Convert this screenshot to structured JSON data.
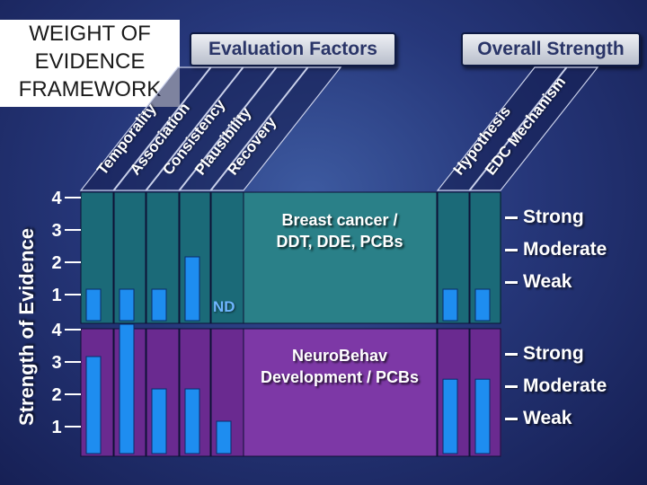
{
  "title_lines": [
    "WEIGHT OF",
    "EVIDENCE",
    "FRAMEWORK"
  ],
  "headers": {
    "evaluation": "Evaluation Factors",
    "overall": "Overall Strength"
  },
  "chart_data": {
    "type": "bar",
    "ylabel": "Strength of Evidence",
    "ylim": [
      0,
      4
    ],
    "yticks": [
      "1",
      "2",
      "3",
      "4"
    ],
    "categories": [
      "Temporality",
      "Association",
      "Consistency",
      "Plausibility",
      "Recovery",
      "Hypothesis",
      "EDC Mechanism"
    ],
    "category_groups": {
      "Evaluation Factors": [
        0,
        1,
        2,
        3,
        4
      ],
      "Overall Strength": [
        5,
        6
      ]
    },
    "strength_labels": [
      "Strong",
      "Moderate",
      "Weak"
    ],
    "colors": {
      "bar": "#1e8df0",
      "teal_panel": "#1b6a78",
      "purple_panel": "#6a2a90"
    },
    "panels": [
      {
        "label_lines": [
          "Breast cancer /",
          "DDT, DDE, PCBs"
        ],
        "values": [
          1,
          1,
          1,
          2,
          null,
          1,
          1
        ],
        "annotation": "ND"
      },
      {
        "label_lines": [
          "NeuroBehav",
          "Development / PCBs"
        ],
        "values": [
          3,
          4,
          2,
          2,
          1,
          2.3,
          2.3
        ],
        "annotation": ""
      }
    ]
  }
}
